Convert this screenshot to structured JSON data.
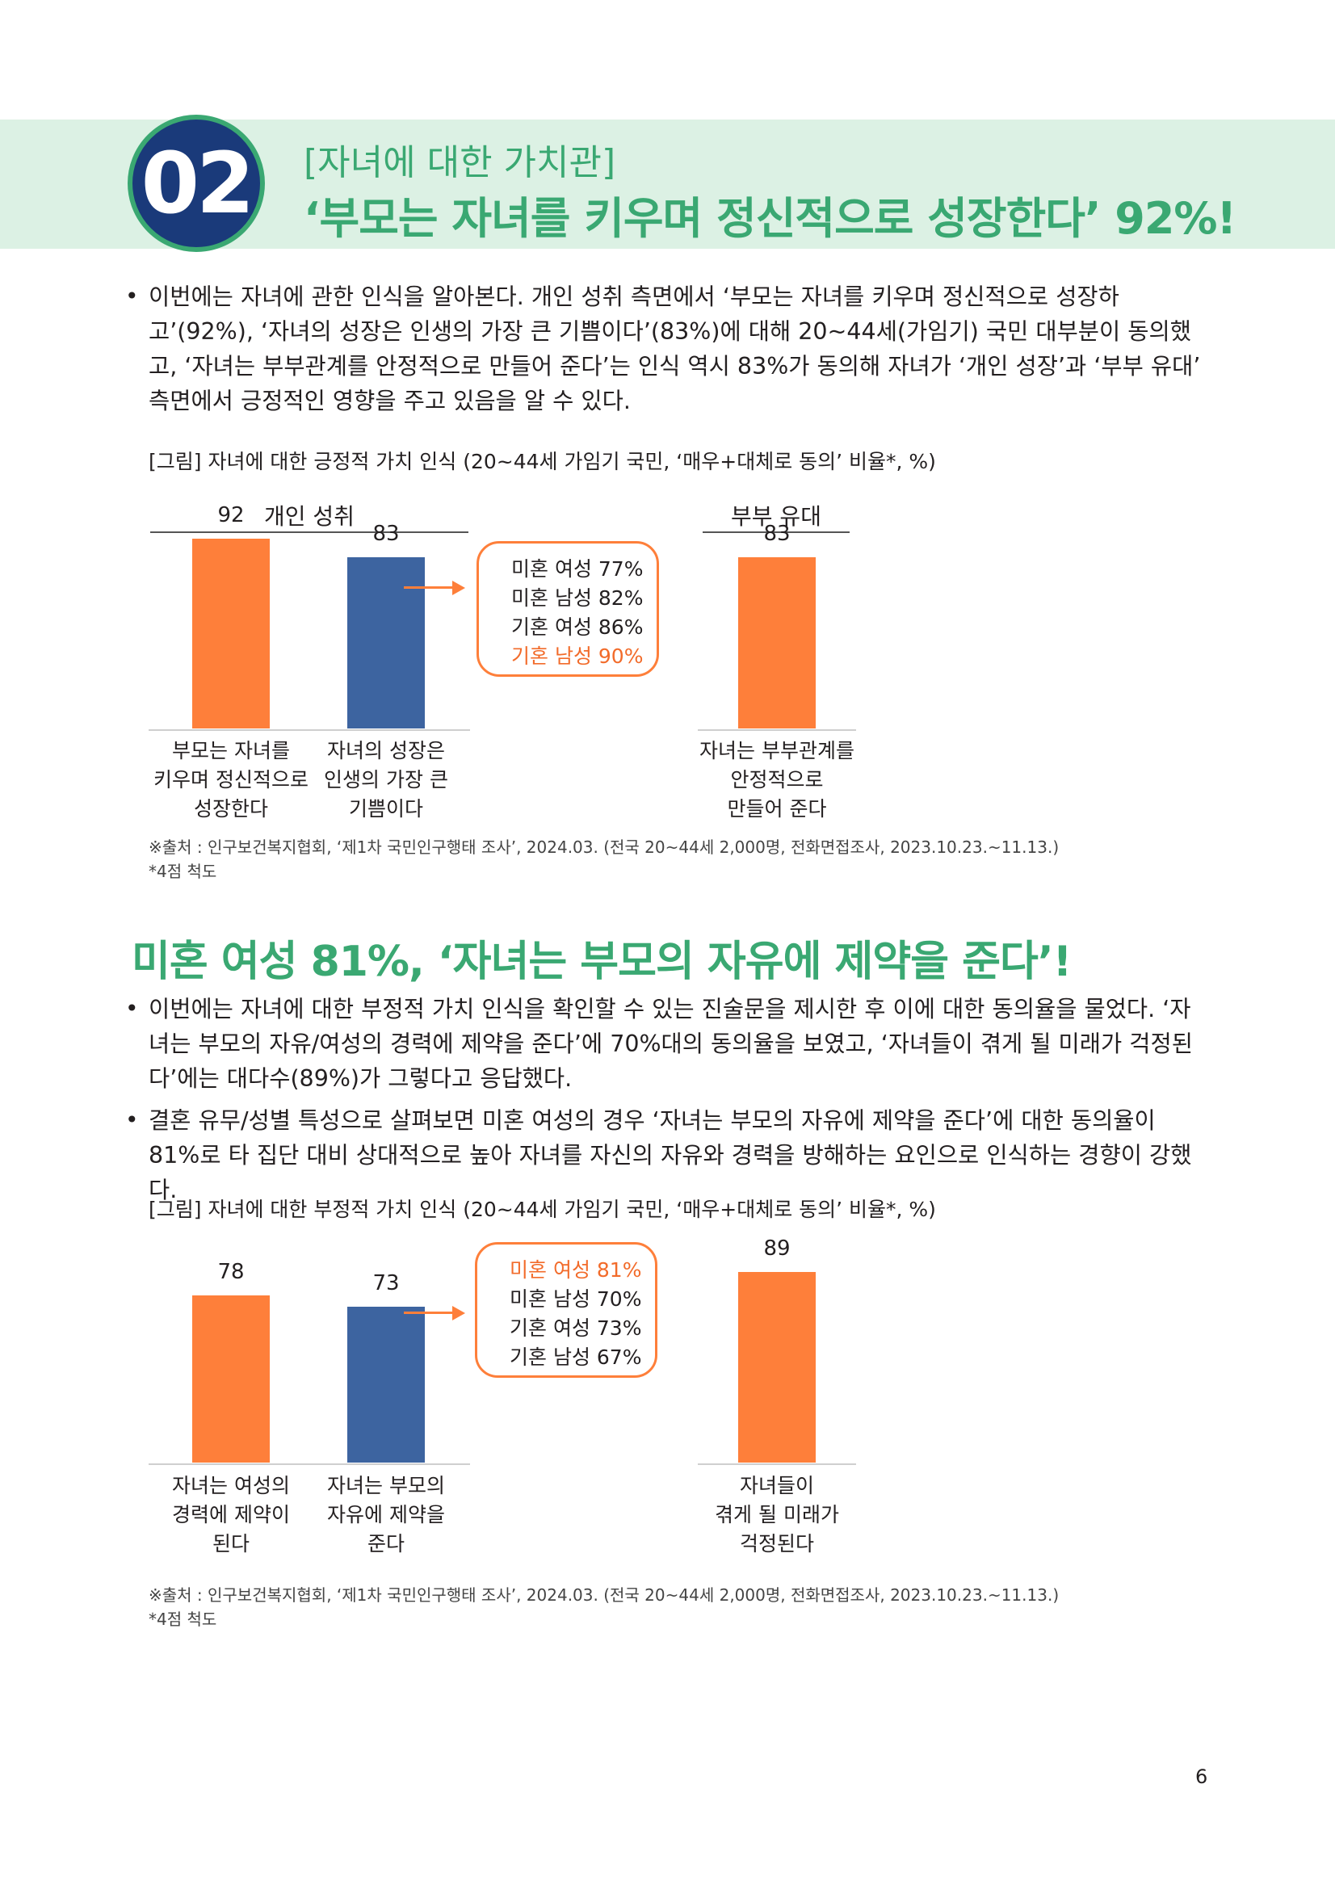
{
  "section": {
    "number": "02",
    "kicker": "[자녀에 대한 가치관]",
    "headline": "‘부모는 자녀를 키우며 정신적으로 성장한다’ 92%!"
  },
  "intro": {
    "paragraph": "이번에는 자녀에 관한 인식을 알아본다. 개인 성취 측면에서 ‘부모는 자녀를 키우며 정신적으로 성장하고’(92%), ‘자녀의 성장은 인생의 가장 큰 기쁨이다’(83%)에 대해 20~44세(가임기) 국민 대부분이 동의했고, ‘자녀는 부부관계를 안정적으로 만들어 준다’는 인식 역시 83%가 동의해 자녀가 ‘개인 성장’과 ‘부부 유대’ 측면에서 긍정적인 영향을 주고 있음을 알 수 있다."
  },
  "figure1": {
    "caption": "[그림] 자녀에 대한 긍정적 가치 인식 (20~44세 가임기 국민, ‘매우+대체로 동의’ 비율*, %)",
    "group_left": "개인 성취",
    "group_right": "부부 유대",
    "callout": [
      "미혼 여성 77%",
      "미혼 남성 82%",
      "기혼 여성 86%",
      "기혼 남성 90%"
    ],
    "source": "※출처 : 인구보건복지협회, ‘제1차 국민인구행태 조사’, 2024.03. (전국 20~44세 2,000명, 전화면접조사, 2023.10.23.~11.13.)",
    "note": "*4점 척도"
  },
  "section2": {
    "headline": "미혼 여성 81%, ‘자녀는 부모의 자유에 제약을 준다’!",
    "bullet1": "이번에는 자녀에 대한 부정적 가치 인식을 확인할 수 있는 진술문을 제시한 후 이에 대한 동의율을 물었다. ‘자녀는 부모의 자유/여성의 경력에 제약을 준다’에 70%대의 동의율을 보였고, ‘자녀들이 겪게 될 미래가 걱정된다’에는 대다수(89%)가 그렇다고 응답했다.",
    "bullet2": "결혼 유무/성별 특성으로 살펴보면 미혼 여성의 경우 ‘자녀는 부모의 자유에 제약을 준다’에 대한 동의율이 81%로 타 집단 대비 상대적으로 높아 자녀를 자신의 자유와 경력을 방해하는 요인으로 인식하는 경향이 강했다."
  },
  "figure2": {
    "caption": "[그림] 자녀에 대한 부정적 가치 인식 (20~44세 가임기 국민, ‘매우+대체로 동의’ 비율*, %)",
    "callout": [
      "미혼 여성 81%",
      "미혼 남성 70%",
      "기혼 여성 73%",
      "기혼 남성 67%"
    ],
    "source": "※출처 : 인구보건복지협회, ‘제1차 국민인구행태 조사’, 2024.03. (전국 20~44세 2,000명, 전화면접조사, 2023.10.23.~11.13.)",
    "note": "*4점 척도"
  },
  "chart_data": [
    {
      "type": "bar",
      "title": "",
      "categories": [
        [
          "부모는 자녀를",
          "키우며 정신적으로",
          "성장한다"
        ],
        [
          "자녀의 성장은",
          "인생의 가장 큰",
          "기쁨이다"
        ],
        [
          "자녀는 부부관계를",
          "안정적으로",
          "만들어 준다"
        ]
      ],
      "values": [
        92,
        83,
        83
      ],
      "labels": [
        "92",
        "83",
        "83"
      ],
      "colors": [
        "#fe7f3a",
        "#3d64a0",
        "#fe7f3a"
      ],
      "ylim": [
        0,
        100
      ]
    },
    {
      "type": "bar",
      "title": "",
      "categories": [
        [
          "자녀는 여성의",
          "경력에 제약이",
          "된다"
        ],
        [
          "자녀는 부모의",
          "자유에 제약을",
          "준다"
        ],
        [
          "자녀들이",
          "겪게 될 미래가",
          "걱정된다"
        ]
      ],
      "values": [
        78,
        73,
        89
      ],
      "labels": [
        "78",
        "73",
        "89"
      ],
      "colors": [
        "#fe7f3a",
        "#3d64a0",
        "#fe7f3a"
      ],
      "ylim": [
        0,
        100
      ]
    }
  ],
  "page_number": "6"
}
